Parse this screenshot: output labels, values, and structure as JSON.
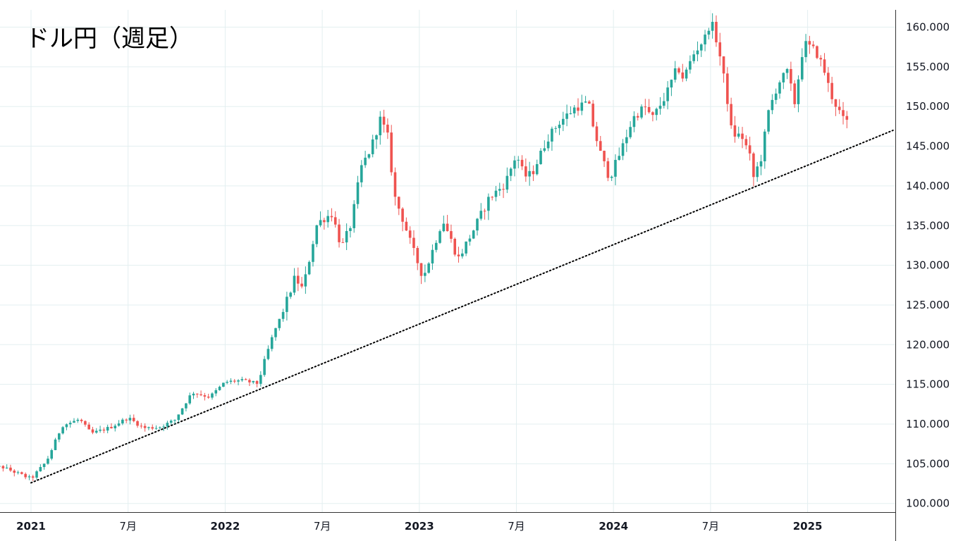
{
  "chart_data": {
    "type": "candlestick",
    "title": "ドル円（週足）",
    "y_axis": {
      "min": 99,
      "max": 162.5,
      "ticks": [
        "100.000",
        "105.000",
        "110.000",
        "115.000",
        "120.000",
        "125.000",
        "130.000",
        "135.000",
        "140.000",
        "145.000",
        "150.000",
        "155.000",
        "160.000"
      ],
      "position": "right"
    },
    "x_axis": {
      "range": [
        2020.76,
        2025.52
      ],
      "ticks": [
        {
          "t": 2021.0,
          "label": "2021",
          "year": true
        },
        {
          "t": 2021.5,
          "label": "7月",
          "year": false
        },
        {
          "t": 2022.0,
          "label": "2022",
          "year": true
        },
        {
          "t": 2022.5,
          "label": "7月",
          "year": false
        },
        {
          "t": 2023.0,
          "label": "2023",
          "year": true
        },
        {
          "t": 2023.5,
          "label": "7月",
          "year": false
        },
        {
          "t": 2024.0,
          "label": "2024",
          "year": true
        },
        {
          "t": 2024.5,
          "label": "7月",
          "year": false
        },
        {
          "t": 2025.0,
          "label": "2025",
          "year": true
        }
      ]
    },
    "colors": {
      "up": "#26a69a",
      "down": "#ef5350",
      "trendline": "#000000",
      "grid": "#e3eff0"
    },
    "trendline": {
      "style": "dotted",
      "from": {
        "t": 2021.0,
        "value": 102.6
      },
      "to": {
        "t": 2025.44,
        "value": 147.0
      }
    },
    "weekly_close_anchors": [
      [
        2020.76,
        104.5
      ],
      [
        2020.85,
        104.6
      ],
      [
        2020.93,
        103.8
      ],
      [
        2021.0,
        103.1
      ],
      [
        2021.08,
        105.3
      ],
      [
        2021.16,
        109.8
      ],
      [
        2021.25,
        110.6
      ],
      [
        2021.31,
        108.8
      ],
      [
        2021.41,
        109.6
      ],
      [
        2021.5,
        110.8
      ],
      [
        2021.58,
        109.5
      ],
      [
        2021.66,
        109.6
      ],
      [
        2021.74,
        110.5
      ],
      [
        2021.83,
        114.0
      ],
      [
        2021.92,
        113.4
      ],
      [
        2022.0,
        115.3
      ],
      [
        2022.08,
        115.5
      ],
      [
        2022.17,
        115.1
      ],
      [
        2022.2,
        117.8
      ],
      [
        2022.25,
        121.5
      ],
      [
        2022.3,
        124.3
      ],
      [
        2022.36,
        128.5
      ],
      [
        2022.4,
        126.9
      ],
      [
        2022.47,
        135.0
      ],
      [
        2022.5,
        135.8
      ],
      [
        2022.55,
        136.5
      ],
      [
        2022.6,
        132.2
      ],
      [
        2022.65,
        135.3
      ],
      [
        2022.7,
        142.3
      ],
      [
        2022.75,
        144.7
      ],
      [
        2022.8,
        148.5
      ],
      [
        2022.84,
        146.0
      ],
      [
        2022.87,
        138.8
      ],
      [
        2022.92,
        135.5
      ],
      [
        2022.96,
        132.4
      ],
      [
        2023.02,
        128.5
      ],
      [
        2023.07,
        132.0
      ],
      [
        2023.12,
        135.8
      ],
      [
        2023.15,
        134.0
      ],
      [
        2023.2,
        130.8
      ],
      [
        2023.28,
        134.5
      ],
      [
        2023.36,
        138.5
      ],
      [
        2023.44,
        140.2
      ],
      [
        2023.5,
        144.0
      ],
      [
        2023.54,
        141.2
      ],
      [
        2023.58,
        141.5
      ],
      [
        2023.66,
        146.0
      ],
      [
        2023.72,
        148.0
      ],
      [
        2023.8,
        149.8
      ],
      [
        2023.87,
        150.5
      ],
      [
        2023.9,
        147.0
      ],
      [
        2023.94,
        143.5
      ],
      [
        2023.98,
        141.0
      ],
      [
        2024.04,
        144.5
      ],
      [
        2024.1,
        148.5
      ],
      [
        2024.16,
        150.0
      ],
      [
        2024.2,
        148.5
      ],
      [
        2024.27,
        151.4
      ],
      [
        2024.33,
        155.0
      ],
      [
        2024.36,
        153.5
      ],
      [
        2024.41,
        156.5
      ],
      [
        2024.48,
        159.0
      ],
      [
        2024.5,
        161.0
      ],
      [
        2024.54,
        157.5
      ],
      [
        2024.58,
        152.0
      ],
      [
        2024.61,
        146.5
      ],
      [
        2024.66,
        146.3
      ],
      [
        2024.7,
        144.0
      ],
      [
        2024.72,
        141.0
      ],
      [
        2024.76,
        143.5
      ],
      [
        2024.8,
        149.5
      ],
      [
        2024.85,
        153.0
      ],
      [
        2024.9,
        154.5
      ],
      [
        2024.93,
        150.0
      ],
      [
        2024.98,
        158.0
      ],
      [
        2025.04,
        157.0
      ],
      [
        2025.08,
        155.0
      ],
      [
        2025.12,
        151.5
      ],
      [
        2025.16,
        149.5
      ],
      [
        2025.19,
        148.0
      ],
      [
        2025.22,
        148.2
      ]
    ]
  }
}
